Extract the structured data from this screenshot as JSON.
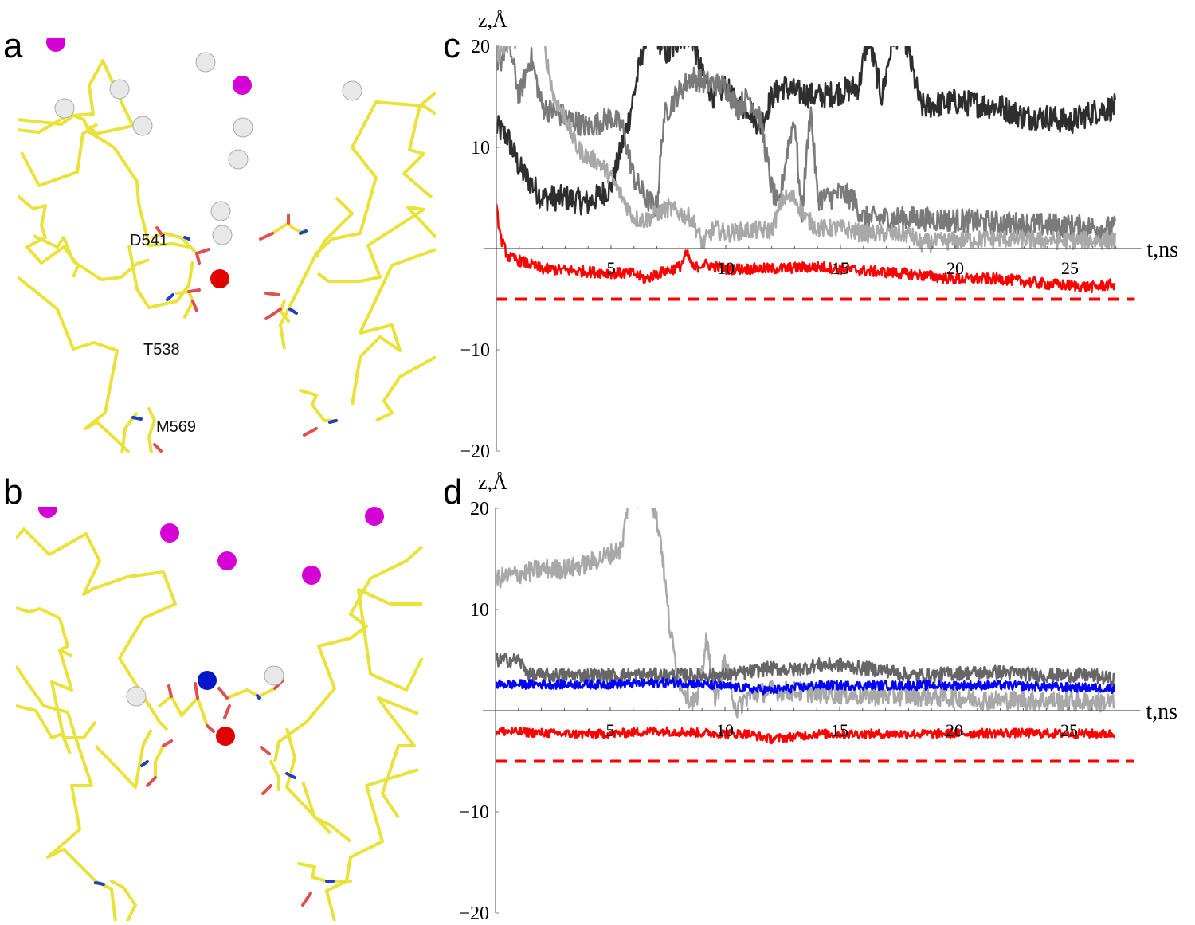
{
  "panels": {
    "a": {
      "letter": "a",
      "labels": [
        "D541",
        "T538",
        "M569"
      ]
    },
    "b": {
      "letter": "b"
    },
    "c": {
      "letter": "c"
    },
    "d": {
      "letter": "d"
    }
  },
  "colors": {
    "backbone": "#e8e23a",
    "ion_magenta": "#d400d4",
    "ion_white": "#e6e6e6",
    "ion_red": "#e00000",
    "ion_blue": "#0018c8",
    "trace_dark": "#2e2e2e",
    "trace_mid": "#7a7a7a",
    "trace_light": "#a8a8a8",
    "trace_red": "#ff0000",
    "trace_blue": "#0000ff",
    "axis": "#808080"
  },
  "chart_data": [
    {
      "panel": "c",
      "type": "line",
      "title": "",
      "xlabel": "t,ns",
      "ylabel": "z,Å",
      "xlim": [
        0,
        28
      ],
      "ylim": [
        -20,
        20
      ],
      "xticks": [
        5,
        10,
        15,
        20,
        25
      ],
      "yticks": [
        20,
        10,
        -10,
        -20
      ],
      "grid": false,
      "series": [
        {
          "name": "ion-dark",
          "color": "#2e2e2e",
          "noise": 1.3,
          "x": [
            0,
            0.5,
            1,
            2,
            3,
            4,
            5,
            5.8,
            6.5,
            7,
            7.5,
            8,
            8.5,
            9,
            9.5,
            10,
            10.5,
            11,
            11.5,
            12,
            12.5,
            13,
            14,
            15,
            15.8,
            16.2,
            16.8,
            17.3,
            17.8,
            18.5,
            20,
            22,
            23,
            24,
            25,
            26,
            27
          ],
          "y": [
            12,
            11,
            8,
            5,
            5,
            4.5,
            6,
            13,
            21,
            21,
            19,
            21,
            21,
            17,
            15,
            16,
            14,
            14,
            12,
            15,
            16,
            15.5,
            15,
            15.5,
            16,
            21,
            15,
            21,
            21,
            14,
            14.5,
            14,
            13,
            13,
            12.5,
            13.5,
            14
          ]
        },
        {
          "name": "ion-mid",
          "color": "#7a7a7a",
          "noise": 1.2,
          "x": [
            0,
            0.5,
            1,
            1.5,
            2,
            3,
            4,
            5,
            5.5,
            6,
            6.5,
            7,
            7.3,
            7.8,
            8.5,
            9,
            10,
            10.5,
            11,
            11.5,
            12,
            12.3,
            12.7,
            13,
            13.3,
            13.7,
            14,
            14.5,
            15,
            15.5,
            16,
            18,
            20,
            22,
            24,
            27
          ],
          "y": [
            17,
            21,
            15,
            19,
            14,
            13,
            12,
            13,
            12,
            7,
            5,
            4,
            13,
            15,
            17,
            16.5,
            16,
            14,
            15,
            13,
            6,
            4,
            10,
            13,
            3,
            14,
            5,
            5,
            5.5,
            5,
            3,
            3,
            2.8,
            2.5,
            2.3,
            2
          ]
        },
        {
          "name": "ion-light",
          "color": "#a8a8a8",
          "noise": 0.9,
          "x": [
            0,
            1,
            2,
            2.5,
            3,
            3.5,
            4,
            4.5,
            5,
            5.5,
            6,
            6.5,
            7,
            7.5,
            8,
            8.5,
            9,
            9.5,
            10,
            11,
            12,
            12.5,
            13,
            13.5,
            14,
            15,
            16,
            18,
            18.5,
            20,
            22,
            24,
            27
          ],
          "y": [
            19,
            21,
            21,
            15,
            13,
            10,
            9,
            8.5,
            7,
            5,
            3,
            2.8,
            3.5,
            4,
            3.5,
            3,
            0.5,
            2,
            1.5,
            1.8,
            1.8,
            5,
            5,
            3,
            2,
            2,
            1.5,
            1.4,
            0.5,
            0.8,
            1,
            0.8,
            0.8
          ]
        },
        {
          "name": "ion-red",
          "color": "#ff0000",
          "noise": 0.55,
          "x": [
            0,
            0.2,
            0.5,
            1,
            2,
            4,
            6,
            6.5,
            7,
            8,
            8.3,
            8.6,
            9,
            10,
            12,
            14,
            16,
            18,
            20,
            22,
            24,
            26,
            27
          ],
          "y": [
            4,
            1,
            -0.8,
            -1.2,
            -2,
            -2.3,
            -2.5,
            -3,
            -2.5,
            -1.8,
            -0.5,
            -2,
            -1.5,
            -2,
            -2,
            -1.8,
            -2.2,
            -2.5,
            -3,
            -3,
            -3.5,
            -3.8,
            -3.5
          ]
        },
        {
          "name": "reference-dashed",
          "color": "#ff0000",
          "style": "dashed",
          "x": [
            0,
            28
          ],
          "y": [
            -5,
            -5
          ]
        }
      ]
    },
    {
      "panel": "d",
      "type": "line",
      "title": "",
      "xlabel": "t,ns",
      "ylabel": "z,Å",
      "xlim": [
        0,
        28
      ],
      "ylim": [
        -20,
        20
      ],
      "xticks": [
        5,
        10,
        15,
        20,
        25
      ],
      "yticks": [
        20,
        10,
        -10,
        -20
      ],
      "grid": false,
      "series": [
        {
          "name": "ion-light",
          "color": "#a8a8a8",
          "noise": 1.0,
          "x": [
            0,
            1,
            2,
            3,
            4,
            5,
            5.5,
            5.8,
            6.3,
            6.8,
            7.2,
            7.6,
            8,
            8.5,
            8.8,
            9.2,
            9.6,
            10,
            10.5,
            11,
            12,
            14,
            16,
            18,
            20,
            22,
            24,
            27
          ],
          "y": [
            13,
            13.5,
            14,
            14,
            14.5,
            15.5,
            16,
            21,
            21,
            21,
            17,
            8,
            3,
            1,
            1,
            7,
            1,
            5,
            0,
            1.5,
            2,
            1.8,
            1.5,
            1.5,
            1.3,
            1,
            1,
            0.8
          ]
        },
        {
          "name": "ion-dark",
          "color": "#666666",
          "noise": 0.7,
          "x": [
            0,
            1,
            1.5,
            2,
            4,
            6,
            8,
            10,
            11,
            12,
            13,
            14,
            15,
            16,
            17,
            18,
            19,
            20,
            22,
            24,
            26,
            27
          ],
          "y": [
            5,
            5,
            3.5,
            3.5,
            3.5,
            3.5,
            3.5,
            3.5,
            3.8,
            4.2,
            4,
            4.5,
            4.5,
            4.2,
            4,
            3.5,
            3.5,
            3.7,
            3.8,
            3.5,
            3.5,
            3
          ]
        },
        {
          "name": "ion-blue",
          "color": "#0000ff",
          "noise": 0.45,
          "x": [
            0,
            5,
            8,
            10,
            12,
            14,
            18,
            22,
            27
          ],
          "y": [
            2.6,
            2.6,
            2.8,
            2.4,
            2,
            2.5,
            2.5,
            2.5,
            2.2
          ]
        },
        {
          "name": "ion-red",
          "color": "#ff0000",
          "noise": 0.45,
          "x": [
            0,
            3,
            5,
            7,
            9,
            11,
            12,
            14,
            18,
            22,
            27
          ],
          "y": [
            -2,
            -2.3,
            -2.3,
            -2,
            -2.2,
            -2.3,
            -2.8,
            -2.3,
            -2.3,
            -2.2,
            -2.3
          ]
        },
        {
          "name": "reference-dashed",
          "color": "#ff0000",
          "style": "dashed",
          "x": [
            0,
            28
          ],
          "y": [
            -5,
            -5
          ]
        }
      ]
    }
  ]
}
